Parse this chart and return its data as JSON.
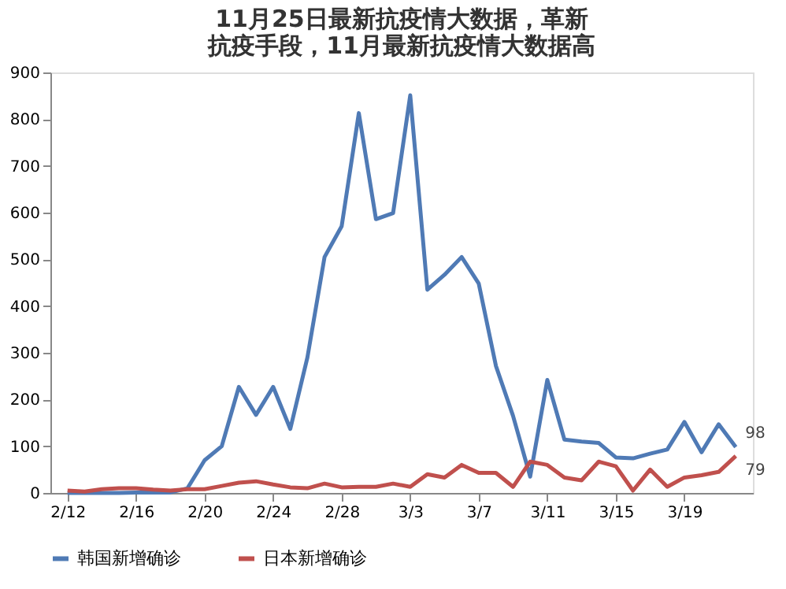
{
  "chart_data": {
    "type": "line",
    "title": "11月25日最新抗疫情大数据，革新抗疫手段，11月最新抗疫情大数据高",
    "categories": [
      "2/12",
      null,
      null,
      null,
      "2/16",
      null,
      null,
      null,
      "2/20",
      null,
      null,
      null,
      "2/24",
      null,
      null,
      null,
      "2/28",
      null,
      null,
      null,
      "3/3",
      null,
      null,
      null,
      "3/7",
      null,
      null,
      null,
      "3/11",
      null,
      null,
      null,
      "3/15",
      null,
      null,
      null,
      "3/19",
      null,
      null,
      null
    ],
    "series": [
      {
        "name": "韩国新增确诊",
        "color": "#4f7ab5",
        "values": [
          0,
          0,
          0,
          0,
          1,
          1,
          1,
          10,
          70,
          100,
          227,
          167,
          227,
          137,
          290,
          505,
          571,
          813,
          586,
          599,
          851,
          435,
          467,
          505,
          448,
          272,
          165,
          35,
          242,
          114,
          110,
          107,
          76,
          74,
          84,
          93,
          152,
          87,
          147,
          98
        ],
        "value_labels": [
          null,
          null,
          null,
          null,
          null,
          null,
          null,
          null,
          null,
          null,
          null,
          null,
          null,
          null,
          null,
          null,
          null,
          null,
          null,
          null,
          null,
          null,
          null,
          null,
          null,
          null,
          null,
          null,
          null,
          null,
          null,
          null,
          null,
          null,
          null,
          null,
          null,
          null,
          null,
          "98"
        ]
      },
      {
        "name": "日本新增确诊",
        "color": "#c0504d",
        "values": [
          5,
          3,
          8,
          10,
          10,
          7,
          5,
          8,
          8,
          15,
          22,
          25,
          18,
          12,
          10,
          20,
          12,
          13,
          13,
          20,
          13,
          40,
          33,
          60,
          43,
          43,
          13,
          67,
          60,
          33,
          27,
          67,
          57,
          5,
          50,
          13,
          33,
          38,
          45,
          79
        ],
        "value_labels": [
          null,
          null,
          null,
          null,
          null,
          null,
          null,
          null,
          null,
          null,
          null,
          null,
          null,
          null,
          null,
          null,
          null,
          null,
          null,
          null,
          null,
          null,
          null,
          null,
          null,
          null,
          null,
          null,
          null,
          null,
          null,
          null,
          null,
          null,
          null,
          null,
          null,
          null,
          null,
          "79"
        ]
      }
    ],
    "ylim": [
      0,
      900
    ],
    "yticks": [
      0,
      100,
      200,
      300,
      400,
      500,
      600,
      700,
      800,
      900
    ],
    "grid": false,
    "legend": "bottom",
    "marker": "none",
    "line_style": "solid"
  }
}
